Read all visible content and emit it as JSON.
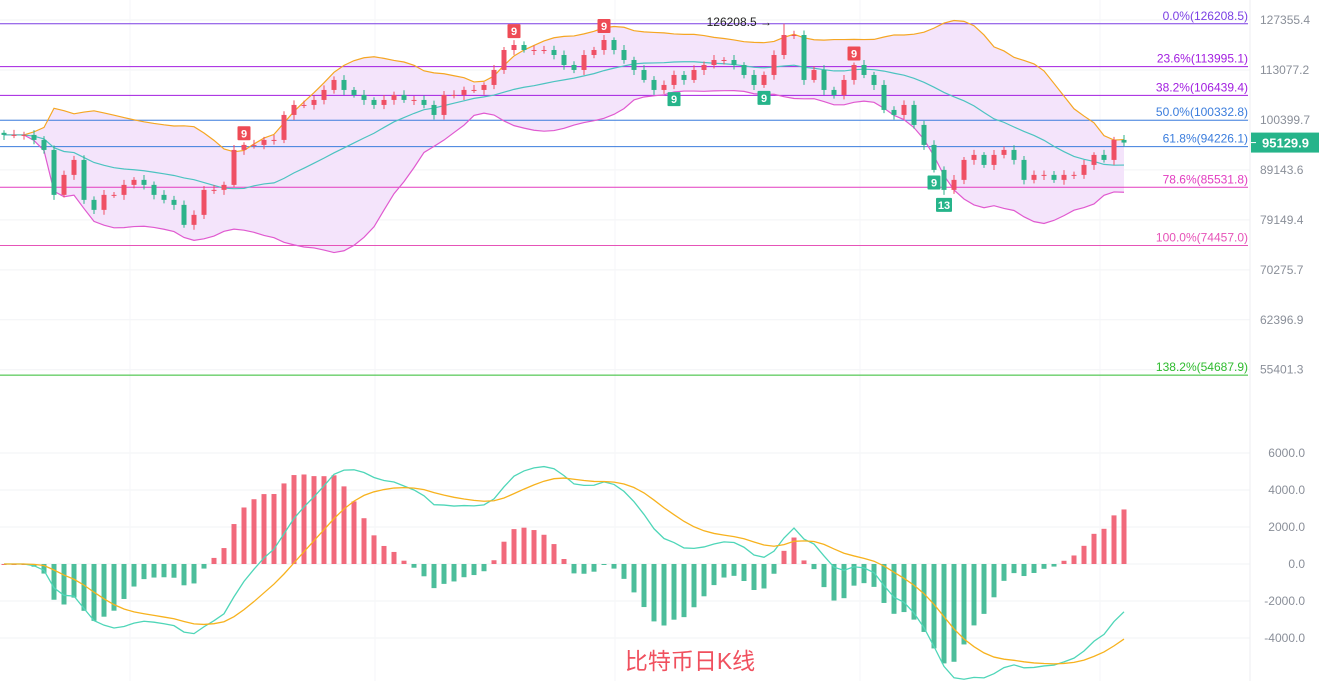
{
  "chart_data": {
    "type": "candlestick",
    "title": "比特币日K线",
    "price_scale": "log",
    "price_axis_ticks": [
      "127355.4",
      "113077.2",
      "100399.7",
      "89143.6",
      "79149.4",
      "70275.7",
      "62396.9",
      "55401.3"
    ],
    "last_price": "95129.9",
    "high_annotation": {
      "index": 78,
      "value": 126208.5,
      "label": "126208.5"
    },
    "closes": [
      96880,
      96880,
      96880,
      95734,
      93483,
      83996,
      88089,
      91285,
      83003,
      81051,
      83996,
      83996,
      86018,
      87048,
      86018,
      83996,
      83003,
      82021,
      78213,
      80093,
      85001,
      85001,
      86018,
      93483,
      94602,
      94602,
      95734,
      95734,
      101598,
      104044,
      104044,
      105289,
      107824,
      110420,
      107824,
      106549,
      105289,
      104044,
      105289,
      106549,
      105289,
      105289,
      104044,
      101598,
      106549,
      106549,
      107824,
      107824,
      109114,
      113077,
      118581,
      120000,
      118581,
      118581,
      118581,
      117178,
      114423,
      113077,
      117178,
      118581,
      121436,
      118581,
      115793,
      113077,
      110420,
      107824,
      109114,
      111740,
      110420,
      113077,
      114423,
      115793,
      115793,
      114423,
      111740,
      109114,
      111740,
      117178,
      122889,
      122889,
      110420,
      113077,
      107824,
      106549,
      110420,
      114423,
      111740,
      109114,
      102813,
      101598,
      104044,
      99212,
      94602,
      89143,
      85001,
      87048,
      91285,
      92378,
      90206,
      92378,
      93483,
      91285,
      87048,
      88089,
      88089,
      87048,
      88089,
      88089,
      90206,
      92378,
      91285,
      95734,
      95130
    ],
    "fib_levels": [
      {
        "label": "0.0%(126208.5)",
        "value": 126208.5,
        "color": "#7b3fe4"
      },
      {
        "label": "23.6%(113995.1)",
        "value": 113995.1,
        "color": "#a21ee0"
      },
      {
        "label": "38.2%(106439.4)",
        "value": 106439.4,
        "color": "#a21ee0"
      },
      {
        "label": "50.0%(100332.8)",
        "value": 100332.8,
        "color": "#3b7ddd"
      },
      {
        "label": "61.8%(94226.1)",
        "value": 94226.1,
        "color": "#3b7ddd"
      },
      {
        "label": "78.6%(85531.8)",
        "value": 85531.8,
        "color": "#e23cc0"
      },
      {
        "label": "100.0%(74457.0)",
        "value": 74457.0,
        "color": "#e653b8"
      },
      {
        "label": "138.2%(54687.9)",
        "value": 54687.9,
        "color": "#2fbb2f"
      }
    ],
    "td_markers": [
      {
        "index": 24,
        "label": "9",
        "side": "top",
        "color": "#ee4b55"
      },
      {
        "index": 51,
        "label": "9",
        "side": "top",
        "color": "#ee4b55"
      },
      {
        "index": 60,
        "label": "9",
        "side": "top",
        "color": "#ee4b55"
      },
      {
        "index": 85,
        "label": "9",
        "side": "top",
        "color": "#ee4b55"
      },
      {
        "index": 67,
        "label": "9",
        "side": "bottom",
        "color": "#26b48a"
      },
      {
        "index": 76,
        "label": "9",
        "side": "bottom",
        "color": "#26b48a"
      },
      {
        "index": 93,
        "label": "9",
        "side": "bottom",
        "color": "#26b48a"
      },
      {
        "index": 94,
        "label": "13",
        "side": "bottom",
        "color": "#26b48a"
      }
    ],
    "indicators": {
      "bollinger": {
        "period": 20,
        "stddev": 2,
        "upper_color": "#f5a623",
        "mid_color": "#4cc3c0",
        "lower_color": "#e05ad0",
        "fill_color": "#f4e4fb"
      },
      "macd": {
        "fast": 12,
        "slow": 26,
        "signal": 9,
        "dif_color": "#4fd6b8",
        "dea_color": "#f7b21e",
        "axis_ticks": [
          "6000.0",
          "4000.0",
          "2000.0",
          "0.0",
          "-2000.0",
          "-4000.0"
        ],
        "ylim": [
          -6000,
          6000
        ]
      }
    },
    "colors": {
      "up": "#ef5065",
      "down": "#2db38a",
      "last_price_bg": "#26b48a"
    }
  }
}
